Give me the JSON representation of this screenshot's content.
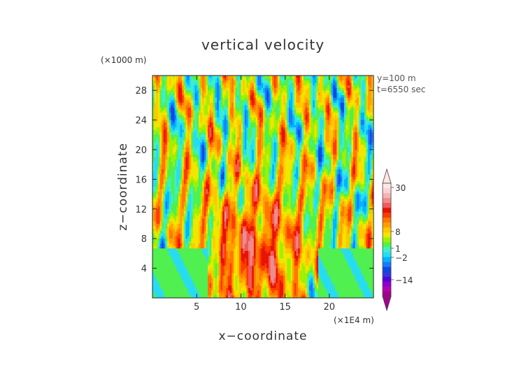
{
  "chart_data": {
    "type": "heatmap",
    "title": "vertical velocity",
    "xlabel": "x−coordinate",
    "ylabel": "z−coordinate",
    "x_unit": "(×1E4 m)",
    "y_unit": "(×1000 m)",
    "xlim": [
      0,
      25
    ],
    "ylim": [
      0,
      30
    ],
    "x_ticks": [
      5,
      10,
      15,
      20
    ],
    "x_tick_labels": [
      "5",
      "10",
      "15",
      "20"
    ],
    "y_ticks": [
      4,
      8,
      12,
      16,
      20,
      24,
      28
    ],
    "y_tick_labels": [
      "4",
      "8",
      "12",
      "16",
      "20",
      "24",
      "28"
    ],
    "annotations": [
      "y=100 m",
      "t=6550 sec"
    ],
    "colorbar": {
      "tick_labels": [
        "30",
        "8",
        "1",
        "−2",
        "−14"
      ],
      "tick_values": [
        30,
        8,
        1,
        -2,
        -14
      ],
      "colors": [
        "#a4008c",
        "#b400b4",
        "#8c00d2",
        "#5a00dc",
        "#2d3cdc",
        "#0a4be6",
        "#1e78ff",
        "#00b4ff",
        "#28dcf0",
        "#3cf0c8",
        "#50f050",
        "#a0f000",
        "#f0e600",
        "#ffc800",
        "#ffa000",
        "#ff7800",
        "#ff3c00",
        "#e61400",
        "#f05a5a",
        "#f08c8c",
        "#f5b4b4",
        "#fad2d2",
        "#ffe6e6"
      ]
    },
    "grid": false
  }
}
